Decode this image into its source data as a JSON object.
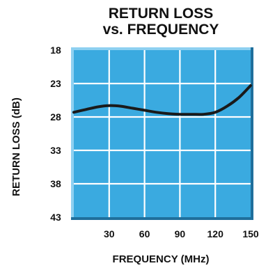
{
  "chart_data": {
    "type": "line",
    "title": [
      "RETURN LOSS",
      "vs.  FREQUENCY"
    ],
    "xlabel": "FREQUENCY (MHz)",
    "ylabel": "RETURN LOSS (dB)",
    "xlim": [
      0,
      150
    ],
    "ylim": [
      18,
      43
    ],
    "y_inverted": true,
    "x_ticks": [
      30,
      60,
      90,
      120,
      150
    ],
    "x_tick_labels": [
      "30",
      "60",
      "90",
      "120",
      "150"
    ],
    "y_ticks": [
      18,
      23,
      28,
      33,
      38,
      43
    ],
    "y_tick_labels": [
      "18",
      "23",
      "28",
      "33",
      "38",
      "43"
    ],
    "grid": true,
    "legend": "none",
    "series": [
      {
        "x": [
          0,
          10,
          20,
          30,
          40,
          50,
          60,
          70,
          80,
          90,
          100,
          110,
          120,
          130,
          140,
          150
        ],
        "values": [
          27.3,
          26.9,
          26.5,
          26.3,
          26.4,
          26.7,
          27.0,
          27.3,
          27.5,
          27.6,
          27.6,
          27.6,
          27.3,
          26.4,
          25.1,
          23.3
        ]
      }
    ]
  },
  "colors": {
    "plot_fill": "#3aaae0",
    "grid_line": "#ffffff",
    "curve": "#1a1a1a",
    "border_light": "#8ed0f1",
    "border_dark": "#1f6f9c",
    "text": "#111111"
  }
}
